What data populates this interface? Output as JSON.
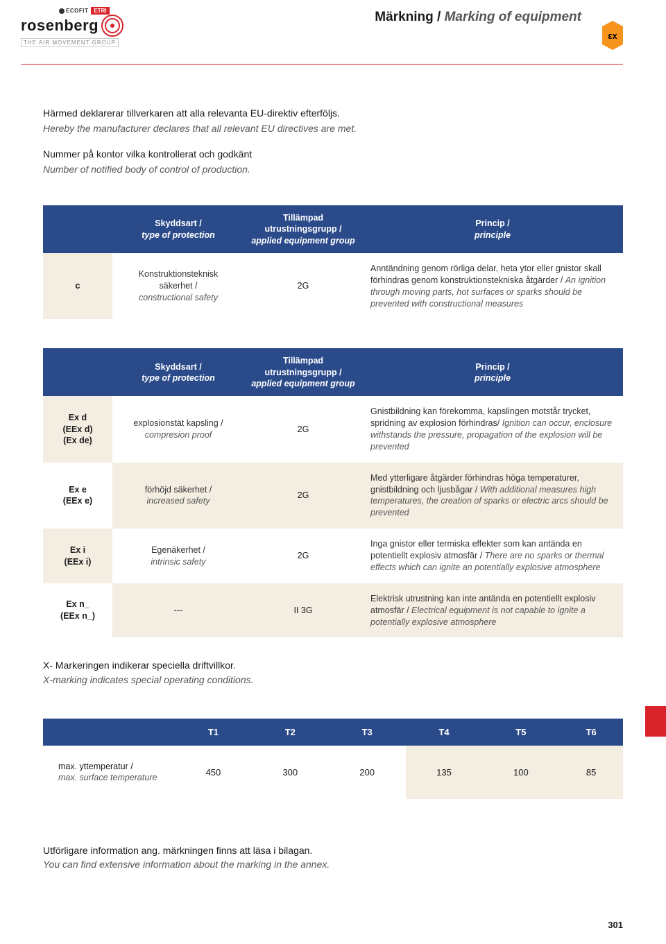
{
  "header": {
    "logo": {
      "top1": "ECOFIT",
      "top2": "ETRI",
      "main": "rosenberg",
      "tagline": "THE AIR MOVEMENT GROUP"
    },
    "title_sv": "Märkning / ",
    "title_en": "Marking of equipment",
    "ex_label": "εx"
  },
  "intro": {
    "l1": "Härmed deklarerar tillverkaren att alla relevanta EU-direktiv efterföljs.",
    "l2": "Hereby the manufacturer declares that all relevant EU directives are met.",
    "l3": "Nummer på kontor vilka kontrollerat och godkänt",
    "l4": "Number of notified body of control of production."
  },
  "table_headers": {
    "code": "",
    "prot_sv": "Skyddsart /",
    "prot_en": "type of protection",
    "grp_sv": "Tillämpad utrustningsgrupp /",
    "grp_en": "applied equipment group",
    "princ_sv": "Princip /",
    "princ_en": "principle"
  },
  "table1": {
    "row": {
      "code": "c",
      "prot_sv": "Konstruktionsteknisk säkerhet /",
      "prot_en": "constructional safety",
      "grp": "2G",
      "princ_sv": "Anntändning genom rörliga delar, heta ytor eller gnistor skall förhindras genom konstruk­tionstekniska åtgärder / ",
      "princ_en": "An ignition through moving parts, hot surfaces or sparks should be prevented with constructional measures"
    }
  },
  "table2": {
    "rows": [
      {
        "code": "Ex d\n(EEx d)\n(Ex de)",
        "prot_sv": "explosionstät kapsling /",
        "prot_en": "compresion proof",
        "grp": "2G",
        "princ_sv": "Gnistbildning kan förekomma, kapslingen motstår trycket, spridning av explosion förhindras/ ",
        "princ_en": "Ignition can occur, enclosure withstands the pressure, propagation of the explosion will be prevented",
        "bgcode": "beige",
        "bgrest": "white"
      },
      {
        "code": "Ex e\n(EEx e)",
        "prot_sv": "förhöjd säkerhet /",
        "prot_en": "increased safety",
        "grp": "2G",
        "princ_sv": "Med ytterligare åtgärder förhindras höga temperaturer, gnistbildning och ljusbågar / ",
        "princ_en": "With additional measures high tempera­tures, the creation of sparks or electric arcs should be prevented",
        "bgcode": "white",
        "bgrest": "beige"
      },
      {
        "code": "Ex i\n(EEx i)",
        "prot_sv": "Egenäkerhet /",
        "prot_en": "intrinsic safety",
        "grp": "2G",
        "princ_sv": "Inga gnistor eller termiska effekter som kan antända en potentiellt explosiv atmosfär / ",
        "princ_en": "There are no sparks or thermal effects which can ignite an potentially explosive atmosphere",
        "bgcode": "beige",
        "bgrest": "white"
      },
      {
        "code": "Ex n_\n(EEx n_)",
        "prot_sv": "---",
        "prot_en": "",
        "grp": "II 3G",
        "princ_sv": "Elektrisk utrustning kan inte antända en potentiellt explosiv atmosfär / ",
        "princ_en": "Electrical equipment is not capable to ignite a potentially explosive atmosphere",
        "bgcode": "white",
        "bgrest": "beige"
      }
    ]
  },
  "xnote": {
    "sv": "X- Markeringen indikerar speciella driftvillkor.",
    "en": "X-marking indicates special operating conditions."
  },
  "table3": {
    "headers": [
      "T1",
      "T2",
      "T3",
      "T4",
      "T5",
      "T6"
    ],
    "row": {
      "label_sv": "max. yttemperatur /",
      "label_en": "max. surface temperature",
      "values": [
        "450",
        "300",
        "200",
        "135",
        "100",
        "85"
      ]
    }
  },
  "bottomnote": {
    "sv": "Utförligare information ang. märkningen finns att läsa i bilagan.",
    "en": "You can find extensive information about the marking in the annex."
  },
  "pagenum": "301"
}
